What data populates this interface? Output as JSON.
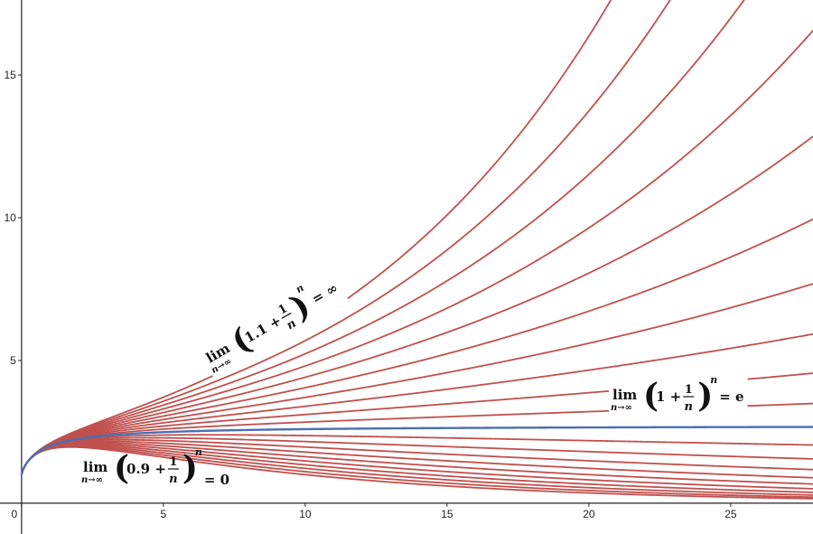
{
  "chart_data": {
    "type": "function-family",
    "formula": {
      "template": "(a + 1/x)^x"
    },
    "functions": [
      {
        "a": 0.9,
        "color": "#c0504d"
      },
      {
        "a": 0.91,
        "color": "#c0504d"
      },
      {
        "a": 0.92,
        "color": "#c0504d"
      },
      {
        "a": 0.93,
        "color": "#c0504d"
      },
      {
        "a": 0.94,
        "color": "#c0504d"
      },
      {
        "a": 0.95,
        "color": "#c0504d"
      },
      {
        "a": 0.96,
        "color": "#c0504d"
      },
      {
        "a": 0.97,
        "color": "#c0504d"
      },
      {
        "a": 0.98,
        "color": "#c0504d"
      },
      {
        "a": 0.99,
        "color": "#c0504d"
      },
      {
        "a": 1.01,
        "color": "#c0504d"
      },
      {
        "a": 1.02,
        "color": "#c0504d"
      },
      {
        "a": 1.03,
        "color": "#c0504d"
      },
      {
        "a": 1.04,
        "color": "#c0504d"
      },
      {
        "a": 1.05,
        "color": "#c0504d"
      },
      {
        "a": 1.06,
        "color": "#c0504d"
      },
      {
        "a": 1.07,
        "color": "#c0504d"
      },
      {
        "a": 1.08,
        "color": "#c0504d"
      },
      {
        "a": 1.09,
        "color": "#c0504d"
      },
      {
        "a": 1.1,
        "color": "#c0504d"
      },
      {
        "a": 1,
        "color": "#4a6fb5"
      }
    ],
    "xlim": [
      -0.76,
      27.9
    ],
    "ylim": [
      -1.08,
      17.63
    ],
    "xticks": [
      0,
      5,
      10,
      15,
      20,
      25
    ],
    "yticks": [
      5,
      10,
      15
    ],
    "annotations": [
      {
        "lim": "lim",
        "sub": "n→∞",
        "base": "1.1 + ",
        "num": "1",
        "den": "n",
        "exp": "n",
        "result": "= ∞"
      },
      {
        "lim": "lim",
        "sub": "n→∞",
        "base": "1 + ",
        "num": "1",
        "den": "n",
        "exp": "n",
        "result": "= e"
      },
      {
        "lim": "lim",
        "sub": "n→∞",
        "base": "0.9 + ",
        "num": "1",
        "den": "n",
        "exp": "n",
        "result": "= 0"
      }
    ]
  }
}
